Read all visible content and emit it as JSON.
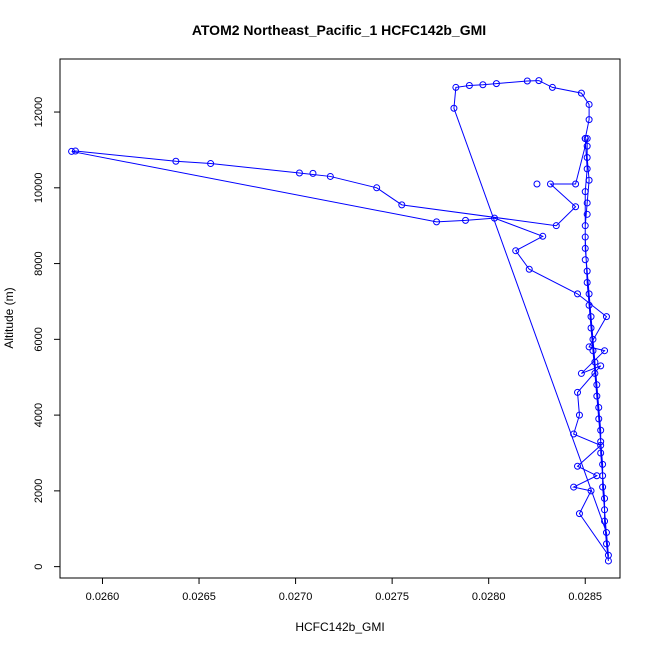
{
  "chart_data": {
    "type": "scatter",
    "title": "ATOM2 Northeast_Pacific_1 HCFC142b_GMI",
    "xlabel": "HCFC142b_GMI",
    "ylabel": "Altitude (m)",
    "xlim": [
      0.02578,
      0.02868
    ],
    "ylim": [
      -300,
      13400
    ],
    "x_ticks": [
      0.026,
      0.0265,
      0.027,
      0.0275,
      0.028,
      0.0285
    ],
    "x_tick_labels": [
      "0.0260",
      "0.0265",
      "0.0270",
      "0.0275",
      "0.0280",
      "0.0285"
    ],
    "y_ticks": [
      0,
      2000,
      4000,
      6000,
      8000,
      10000,
      12000
    ],
    "y_tick_labels": [
      "0",
      "2000",
      "4000",
      "6000",
      "8000",
      "10000",
      "12000"
    ],
    "color": "#0000ff",
    "grid": false,
    "legend": "none",
    "points": [
      [
        0.02862,
        150
      ],
      [
        0.02862,
        300
      ],
      [
        0.02861,
        600
      ],
      [
        0.02861,
        900
      ],
      [
        0.0286,
        1200
      ],
      [
        0.0286,
        1500
      ],
      [
        0.0286,
        1800
      ],
      [
        0.02859,
        2100
      ],
      [
        0.02859,
        2400
      ],
      [
        0.02859,
        2700
      ],
      [
        0.02858,
        3000
      ],
      [
        0.02858,
        3300
      ],
      [
        0.02858,
        3600
      ],
      [
        0.02857,
        3900
      ],
      [
        0.02857,
        4200
      ],
      [
        0.02856,
        4500
      ],
      [
        0.02856,
        4800
      ],
      [
        0.02855,
        5100
      ],
      [
        0.02855,
        5400
      ],
      [
        0.02854,
        5700
      ],
      [
        0.02854,
        6000
      ],
      [
        0.02853,
        6300
      ],
      [
        0.02853,
        6600
      ],
      [
        0.02852,
        6900
      ],
      [
        0.02852,
        7200
      ],
      [
        0.02851,
        7500
      ],
      [
        0.02851,
        7800
      ],
      [
        0.0285,
        8100
      ],
      [
        0.0285,
        8400
      ],
      [
        0.0285,
        8700
      ],
      [
        0.0285,
        9000
      ],
      [
        0.02851,
        9300
      ],
      [
        0.02851,
        9600
      ],
      [
        0.0285,
        9900
      ],
      [
        0.02852,
        10200
      ],
      [
        0.02851,
        10500
      ],
      [
        0.02851,
        10800
      ],
      [
        0.02851,
        11100
      ],
      [
        0.02851,
        11300
      ],
      [
        0.02852,
        11800
      ],
      [
        0.02852,
        12200
      ],
      [
        0.02848,
        12500
      ],
      [
        0.0285,
        11300
      ],
      [
        0.0285,
        11300
      ],
      [
        0.02845,
        10100
      ],
      [
        0.02832,
        10100
      ],
      [
        0.02825,
        10100
      ],
      [
        0.02845,
        9500
      ],
      [
        0.02835,
        9000
      ],
      [
        0.02755,
        9550
      ],
      [
        0.02742,
        10000
      ],
      [
        0.02718,
        10300
      ],
      [
        0.02709,
        10380
      ],
      [
        0.02702,
        10390
      ],
      [
        0.02656,
        10640
      ],
      [
        0.02638,
        10700
      ],
      [
        0.02586,
        10970
      ],
      [
        0.02584,
        10960
      ],
      [
        0.02773,
        9100
      ],
      [
        0.02788,
        9140
      ],
      [
        0.02803,
        9200
      ],
      [
        0.02828,
        8720
      ],
      [
        0.02814,
        8340
      ],
      [
        0.02821,
        7850
      ],
      [
        0.02846,
        7200
      ],
      [
        0.02852,
        5800
      ],
      [
        0.02848,
        5100
      ],
      [
        0.02846,
        4600
      ],
      [
        0.02847,
        4000
      ],
      [
        0.02844,
        3500
      ],
      [
        0.02846,
        2650
      ],
      [
        0.02844,
        2100
      ],
      [
        0.02847,
        1400
      ],
      [
        0.02853,
        2000
      ],
      [
        0.02856,
        2400
      ],
      [
        0.02858,
        3200
      ],
      [
        0.02861,
        6600
      ],
      [
        0.0286,
        5700
      ],
      [
        0.02858,
        5300
      ],
      [
        0.02782,
        12100
      ],
      [
        0.02783,
        12650
      ],
      [
        0.0279,
        12700
      ],
      [
        0.02797,
        12720
      ],
      [
        0.02804,
        12750
      ],
      [
        0.0282,
        12820
      ],
      [
        0.02826,
        12830
      ],
      [
        0.02833,
        12650
      ]
    ],
    "line_sequence": [
      [
        0.02862,
        150
      ],
      [
        0.02861,
        600
      ],
      [
        0.0286,
        1200
      ],
      [
        0.0286,
        1800
      ],
      [
        0.02859,
        2400
      ],
      [
        0.02858,
        3000
      ],
      [
        0.02858,
        3600
      ],
      [
        0.02857,
        4200
      ],
      [
        0.02856,
        4800
      ],
      [
        0.02855,
        5400
      ],
      [
        0.02854,
        6000
      ],
      [
        0.02853,
        6600
      ],
      [
        0.02852,
        7200
      ],
      [
        0.02851,
        7800
      ],
      [
        0.0285,
        8400
      ],
      [
        0.0285,
        9000
      ],
      [
        0.02851,
        9600
      ],
      [
        0.02852,
        10200
      ],
      [
        0.02851,
        10800
      ],
      [
        0.02851,
        11300
      ],
      [
        0.02845,
        10100
      ],
      [
        0.02832,
        10100
      ],
      [
        0.02845,
        9500
      ],
      [
        0.02835,
        9000
      ],
      [
        0.02755,
        9550
      ],
      [
        0.02742,
        10000
      ],
      [
        0.02718,
        10300
      ],
      [
        0.02702,
        10390
      ],
      [
        0.02656,
        10640
      ],
      [
        0.02638,
        10700
      ],
      [
        0.02586,
        10970
      ],
      [
        0.02584,
        10960
      ],
      [
        0.02773,
        9100
      ],
      [
        0.02788,
        9140
      ],
      [
        0.02803,
        9200
      ],
      [
        0.02828,
        8720
      ],
      [
        0.02814,
        8340
      ],
      [
        0.02821,
        7850
      ],
      [
        0.02846,
        7200
      ],
      [
        0.02861,
        6600
      ],
      [
        0.02852,
        5800
      ],
      [
        0.0286,
        5700
      ],
      [
        0.02848,
        5100
      ],
      [
        0.02858,
        5300
      ],
      [
        0.02846,
        4600
      ],
      [
        0.02847,
        4000
      ],
      [
        0.02844,
        3500
      ],
      [
        0.02858,
        3200
      ],
      [
        0.02846,
        2650
      ],
      [
        0.02856,
        2400
      ],
      [
        0.02844,
        2100
      ],
      [
        0.02853,
        2000
      ],
      [
        0.02847,
        1400
      ],
      [
        0.02862,
        300
      ],
      [
        0.02861,
        900
      ],
      [
        0.02782,
        12100
      ],
      [
        0.02783,
        12650
      ],
      [
        0.0279,
        12700
      ],
      [
        0.02797,
        12720
      ],
      [
        0.02804,
        12750
      ],
      [
        0.0282,
        12820
      ],
      [
        0.02826,
        12830
      ],
      [
        0.02833,
        12650
      ],
      [
        0.02848,
        12500
      ],
      [
        0.02852,
        12200
      ],
      [
        0.02852,
        11800
      ],
      [
        0.0285,
        11300
      ],
      [
        0.02851,
        10500
      ],
      [
        0.0285,
        9900
      ],
      [
        0.0285,
        8700
      ],
      [
        0.02851,
        7500
      ],
      [
        0.02853,
        6300
      ],
      [
        0.02854,
        5700
      ],
      [
        0.02856,
        4500
      ],
      [
        0.02857,
        3900
      ],
      [
        0.02858,
        3300
      ],
      [
        0.02859,
        2700
      ],
      [
        0.02859,
        2100
      ],
      [
        0.0286,
        1500
      ],
      [
        0.02862,
        150
      ]
    ]
  }
}
